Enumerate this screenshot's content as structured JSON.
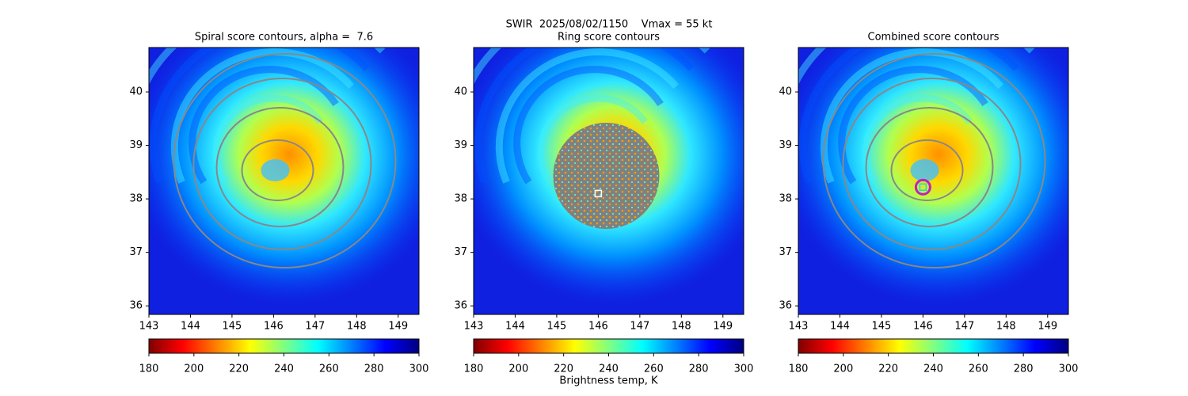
{
  "title": "SWIR  2025/08/02/1150    Vmax = 55 kt",
  "chart_data": [
    {
      "type": "heatmap",
      "title": "Spiral score contours, alpha =  7.6",
      "xlim": [
        143,
        149.5
      ],
      "ylim": [
        35.84,
        40.83
      ],
      "xticks": [
        143,
        144,
        145,
        146,
        147,
        148,
        149
      ],
      "yticks": [
        36,
        37,
        38,
        39,
        40
      ],
      "clim": [
        180,
        300
      ],
      "cticks": [
        180,
        200,
        220,
        240,
        260,
        280,
        300
      ],
      "colors": [
        "#800000",
        "#ff0000",
        "#ff8000",
        "#ffff00",
        "#80ff80",
        "#00ffff",
        "#0080ff",
        "#0000ff",
        "#000080"
      ]
    },
    {
      "type": "heatmap",
      "title": "Ring score contours",
      "xlim": [
        143,
        149.5
      ],
      "ylim": [
        35.84,
        40.83
      ],
      "xticks": [
        143,
        144,
        145,
        146,
        147,
        148,
        149
      ],
      "yticks": [
        36,
        37,
        38,
        39,
        40
      ],
      "clim": [
        180,
        300
      ],
      "cticks": [
        180,
        200,
        220,
        240,
        260,
        280,
        300
      ],
      "colors": [
        "#800000",
        "#ff0000",
        "#ff8000",
        "#ffff00",
        "#80ff80",
        "#00ffff",
        "#0080ff",
        "#0000ff",
        "#000080"
      ],
      "colorbar_label": "Brightness temp, K",
      "marker": {
        "x": 146.0,
        "y": 38.1,
        "color": "#ffffff"
      }
    },
    {
      "type": "heatmap",
      "title": "Combined score contours",
      "xlim": [
        143,
        149.5
      ],
      "ylim": [
        35.84,
        40.83
      ],
      "xticks": [
        143,
        144,
        145,
        146,
        147,
        148,
        149
      ],
      "yticks": [
        36,
        37,
        38,
        39,
        40
      ],
      "clim": [
        180,
        300
      ],
      "cticks": [
        180,
        200,
        220,
        240,
        260,
        280,
        300
      ],
      "colors": [
        "#800000",
        "#ff0000",
        "#ff8000",
        "#ffff00",
        "#80ff80",
        "#00ffff",
        "#0080ff",
        "#0000ff",
        "#000080"
      ],
      "marker": {
        "x": 146.0,
        "y": 38.22,
        "color": "#00e5ff",
        "ring_color": "#c020c0"
      }
    }
  ]
}
